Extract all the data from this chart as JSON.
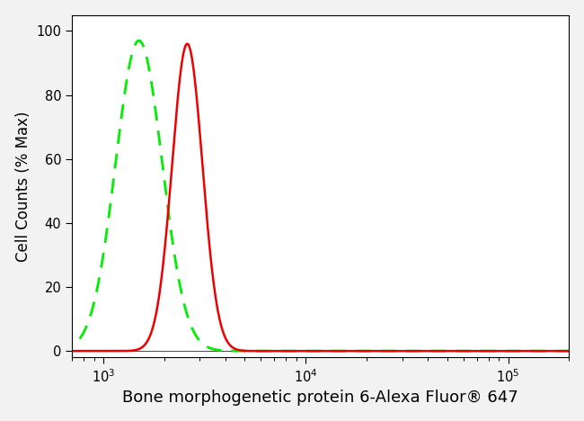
{
  "title": "Bone morphogenetic protein 6-Alexa Fluor® 647",
  "ylabel": "Cell Counts (% Max)",
  "xlim": [
    700,
    200000
  ],
  "ylim": [
    -2,
    105
  ],
  "yticks": [
    0,
    20,
    40,
    60,
    80,
    100
  ],
  "green_peak": 1500,
  "green_sigma_log": 0.115,
  "green_peak_height": 97,
  "red_peak": 2600,
  "red_sigma_log": 0.075,
  "red_peak_height": 96,
  "green_color": "#00ee00",
  "red_color": "#ee0000",
  "bg_color": "#f2f2f2",
  "plot_bg_color": "#ffffff",
  "title_fontsize": 13,
  "axis_label_fontsize": 12,
  "tick_fontsize": 10.5
}
